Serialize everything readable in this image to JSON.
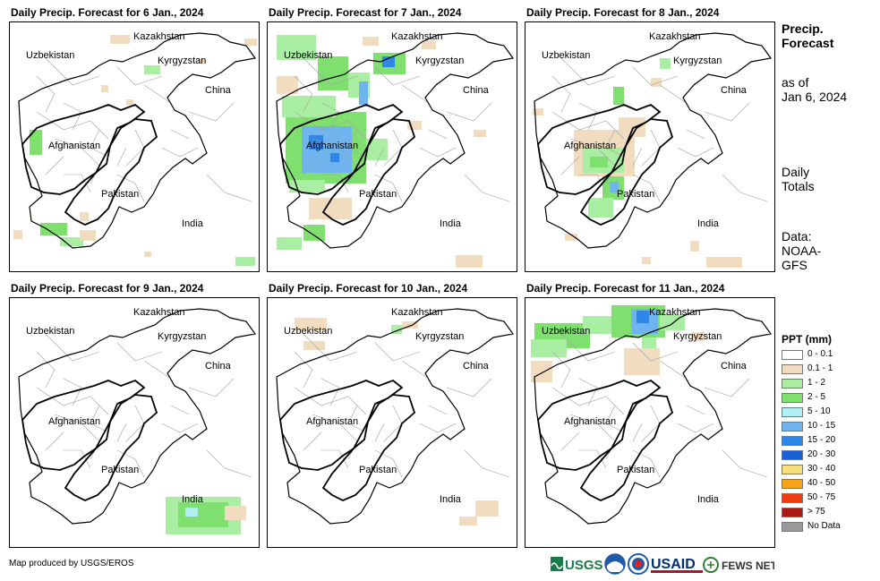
{
  "panels": [
    {
      "title": "Daily Precip. Forecast for 6 Jan., 2024",
      "blobs": [
        {
          "x": 112,
          "y": 14,
          "w": 22,
          "h": 10,
          "color": "#f1dcbf"
        },
        {
          "x": 262,
          "y": 18,
          "w": 14,
          "h": 8,
          "color": "#f1dcbf"
        },
        {
          "x": 150,
          "y": 48,
          "w": 18,
          "h": 10,
          "color": "#a9eea2"
        },
        {
          "x": 22,
          "y": 120,
          "w": 14,
          "h": 28,
          "color": "#7fe070"
        },
        {
          "x": 34,
          "y": 224,
          "w": 30,
          "h": 14,
          "color": "#7fe070"
        },
        {
          "x": 56,
          "y": 240,
          "w": 26,
          "h": 10,
          "color": "#a9eea2"
        },
        {
          "x": 78,
          "y": 232,
          "w": 18,
          "h": 12,
          "color": "#f1dcbf"
        },
        {
          "x": 252,
          "y": 262,
          "w": 22,
          "h": 10,
          "color": "#a9eea2"
        },
        {
          "x": 102,
          "y": 70,
          "w": 8,
          "h": 8,
          "color": "#f1dcbf"
        },
        {
          "x": 130,
          "y": 86,
          "w": 8,
          "h": 6,
          "color": "#f1dcbf"
        },
        {
          "x": 210,
          "y": 40,
          "w": 8,
          "h": 6,
          "color": "#f1dcbf"
        },
        {
          "x": 78,
          "y": 212,
          "w": 10,
          "h": 10,
          "color": "#f1dcbf"
        },
        {
          "x": 150,
          "y": 256,
          "w": 8,
          "h": 6,
          "color": "#f1dcbf"
        },
        {
          "x": 4,
          "y": 232,
          "w": 10,
          "h": 10,
          "color": "#f1dcbf"
        }
      ]
    },
    {
      "title": "Daily Precip. Forecast for 7 Jan., 2024",
      "blobs": [
        {
          "x": 10,
          "y": 14,
          "w": 44,
          "h": 28,
          "color": "#a9eea2"
        },
        {
          "x": 56,
          "y": 38,
          "w": 34,
          "h": 38,
          "color": "#7fe070"
        },
        {
          "x": 90,
          "y": 56,
          "w": 24,
          "h": 28,
          "color": "#a9eea2"
        },
        {
          "x": 102,
          "y": 66,
          "w": 10,
          "h": 26,
          "color": "#6fb4ef"
        },
        {
          "x": 118,
          "y": 34,
          "w": 36,
          "h": 24,
          "color": "#7fe070"
        },
        {
          "x": 128,
          "y": 38,
          "w": 14,
          "h": 12,
          "color": "#2e86e6"
        },
        {
          "x": 106,
          "y": 16,
          "w": 18,
          "h": 10,
          "color": "#f1dcbf"
        },
        {
          "x": 172,
          "y": 20,
          "w": 16,
          "h": 10,
          "color": "#f1dcbf"
        },
        {
          "x": 20,
          "y": 100,
          "w": 90,
          "h": 80,
          "color": "#7fe070"
        },
        {
          "x": 38,
          "y": 116,
          "w": 56,
          "h": 52,
          "color": "#6fb4ef"
        },
        {
          "x": 46,
          "y": 126,
          "w": 16,
          "h": 16,
          "color": "#2e86e6"
        },
        {
          "x": 70,
          "y": 146,
          "w": 10,
          "h": 10,
          "color": "#2e86e6"
        },
        {
          "x": 16,
          "y": 82,
          "w": 60,
          "h": 24,
          "color": "#a9eea2"
        },
        {
          "x": 24,
          "y": 176,
          "w": 40,
          "h": 14,
          "color": "#a9eea2"
        },
        {
          "x": 46,
          "y": 196,
          "w": 48,
          "h": 24,
          "color": "#f1dcbf"
        },
        {
          "x": 40,
          "y": 226,
          "w": 24,
          "h": 18,
          "color": "#7fe070"
        },
        {
          "x": 10,
          "y": 240,
          "w": 28,
          "h": 14,
          "color": "#a9eea2"
        },
        {
          "x": 210,
          "y": 260,
          "w": 30,
          "h": 14,
          "color": "#f1dcbf"
        },
        {
          "x": 110,
          "y": 130,
          "w": 24,
          "h": 24,
          "color": "#a9eea2"
        },
        {
          "x": 10,
          "y": 60,
          "w": 24,
          "h": 20,
          "color": "#f1dcbf"
        },
        {
          "x": 156,
          "y": 110,
          "w": 16,
          "h": 10,
          "color": "#f1dcbf"
        },
        {
          "x": 230,
          "y": 120,
          "w": 14,
          "h": 8,
          "color": "#f1dcbf"
        }
      ]
    },
    {
      "title": "Daily Precip. Forecast for 8 Jan., 2024",
      "blobs": [
        {
          "x": 98,
          "y": 72,
          "w": 12,
          "h": 20,
          "color": "#7fe070"
        },
        {
          "x": 150,
          "y": 40,
          "w": 12,
          "h": 12,
          "color": "#a9eea2"
        },
        {
          "x": 54,
          "y": 120,
          "w": 68,
          "h": 52,
          "color": "#f1dcbf"
        },
        {
          "x": 64,
          "y": 140,
          "w": 46,
          "h": 28,
          "color": "#a9eea2"
        },
        {
          "x": 72,
          "y": 150,
          "w": 20,
          "h": 12,
          "color": "#7fe070"
        },
        {
          "x": 86,
          "y": 172,
          "w": 24,
          "h": 26,
          "color": "#7fe070"
        },
        {
          "x": 94,
          "y": 178,
          "w": 10,
          "h": 12,
          "color": "#6fb4ef"
        },
        {
          "x": 70,
          "y": 196,
          "w": 28,
          "h": 22,
          "color": "#a9eea2"
        },
        {
          "x": 104,
          "y": 106,
          "w": 30,
          "h": 22,
          "color": "#f1dcbf"
        },
        {
          "x": 44,
          "y": 236,
          "w": 14,
          "h": 8,
          "color": "#f1dcbf"
        },
        {
          "x": 184,
          "y": 244,
          "w": 10,
          "h": 12,
          "color": "#f1dcbf"
        },
        {
          "x": 202,
          "y": 262,
          "w": 40,
          "h": 12,
          "color": "#f1dcbf"
        },
        {
          "x": 130,
          "y": 262,
          "w": 10,
          "h": 8,
          "color": "#f1dcbf"
        },
        {
          "x": 8,
          "y": 96,
          "w": 12,
          "h": 8,
          "color": "#f1dcbf"
        },
        {
          "x": 140,
          "y": 62,
          "w": 12,
          "h": 10,
          "color": "#f1dcbf"
        }
      ]
    },
    {
      "title": "Daily Precip. Forecast for 9 Jan., 2024",
      "blobs": [
        {
          "x": 174,
          "y": 222,
          "w": 84,
          "h": 42,
          "color": "#a9eea2"
        },
        {
          "x": 188,
          "y": 228,
          "w": 56,
          "h": 28,
          "color": "#7fe070"
        },
        {
          "x": 196,
          "y": 234,
          "w": 14,
          "h": 10,
          "color": "#aef0f4"
        },
        {
          "x": 240,
          "y": 232,
          "w": 24,
          "h": 16,
          "color": "#f1dcbf"
        }
      ]
    },
    {
      "title": "Daily Precip. Forecast for 10 Jan., 2024",
      "blobs": [
        {
          "x": 30,
          "y": 22,
          "w": 36,
          "h": 14,
          "color": "#f1dcbf"
        },
        {
          "x": 40,
          "y": 48,
          "w": 24,
          "h": 10,
          "color": "#f1dcbf"
        },
        {
          "x": 138,
          "y": 30,
          "w": 12,
          "h": 10,
          "color": "#a9eea2"
        },
        {
          "x": 150,
          "y": 26,
          "w": 18,
          "h": 8,
          "color": "#f1dcbf"
        },
        {
          "x": 232,
          "y": 226,
          "w": 26,
          "h": 18,
          "color": "#f1dcbf"
        },
        {
          "x": 214,
          "y": 244,
          "w": 20,
          "h": 10,
          "color": "#f1dcbf"
        }
      ]
    },
    {
      "title": "Daily Precip. Forecast for 11 Jan., 2024",
      "blobs": [
        {
          "x": 10,
          "y": 28,
          "w": 62,
          "h": 28,
          "color": "#7fe070"
        },
        {
          "x": 6,
          "y": 46,
          "w": 40,
          "h": 20,
          "color": "#a9eea2"
        },
        {
          "x": 64,
          "y": 20,
          "w": 36,
          "h": 20,
          "color": "#a9eea2"
        },
        {
          "x": 96,
          "y": 8,
          "w": 60,
          "h": 36,
          "color": "#7fe070"
        },
        {
          "x": 118,
          "y": 12,
          "w": 30,
          "h": 28,
          "color": "#6fb4ef"
        },
        {
          "x": 124,
          "y": 14,
          "w": 14,
          "h": 14,
          "color": "#2e86e6"
        },
        {
          "x": 150,
          "y": 18,
          "w": 28,
          "h": 18,
          "color": "#a9eea2"
        },
        {
          "x": 110,
          "y": 56,
          "w": 40,
          "h": 30,
          "color": "#f1dcbf"
        },
        {
          "x": 6,
          "y": 70,
          "w": 24,
          "h": 24,
          "color": "#f1dcbf"
        },
        {
          "x": 186,
          "y": 38,
          "w": 14,
          "h": 10,
          "color": "#f1dcbf"
        },
        {
          "x": 130,
          "y": 44,
          "w": 16,
          "h": 12,
          "color": "#a9eea2"
        }
      ]
    }
  ],
  "map_labels": {
    "kazakhstan": "Kazakhstan",
    "uzbekistan": "Uzbekistan",
    "kyrgyzstan": "Kyrgyzstan",
    "china": "China",
    "afghanistan": "Afghanistan",
    "pakistan": "Pakistan",
    "india": "India"
  },
  "side": {
    "title_line1": "Precip.",
    "title_line2": "Forecast",
    "asof_line1": "as of",
    "asof_line2": "Jan 6, 2024",
    "totals_line1": "Daily",
    "totals_line2": "Totals",
    "data_line1": "Data:",
    "data_line2": "NOAA-",
    "data_line3": "GFS"
  },
  "legend": {
    "title": "PPT (mm)",
    "items": [
      {
        "label": "0 - 0.1",
        "color": "#ffffff"
      },
      {
        "label": "0.1 - 1",
        "color": "#f1dcbf"
      },
      {
        "label": "1 - 2",
        "color": "#a9eea2"
      },
      {
        "label": "2 - 5",
        "color": "#7fe070"
      },
      {
        "label": "5 - 10",
        "color": "#aef0f4"
      },
      {
        "label": "10 - 15",
        "color": "#6fb4ef"
      },
      {
        "label": "15 - 20",
        "color": "#2e86e6"
      },
      {
        "label": "20 - 30",
        "color": "#1b5fd6"
      },
      {
        "label": "30 - 40",
        "color": "#f7e07a"
      },
      {
        "label": "40 - 50",
        "color": "#f7a21b"
      },
      {
        "label": "50 - 75",
        "color": "#ef3a12"
      },
      {
        "label": "> 75",
        "color": "#a81a14"
      },
      {
        "label": "No Data",
        "color": "#9a9a9a"
      }
    ]
  },
  "footer": "Map produced by USGS/EROS",
  "logos": {
    "usgs": "USGS",
    "usaid": "USAID",
    "fewsnet": "FEWS NET"
  }
}
